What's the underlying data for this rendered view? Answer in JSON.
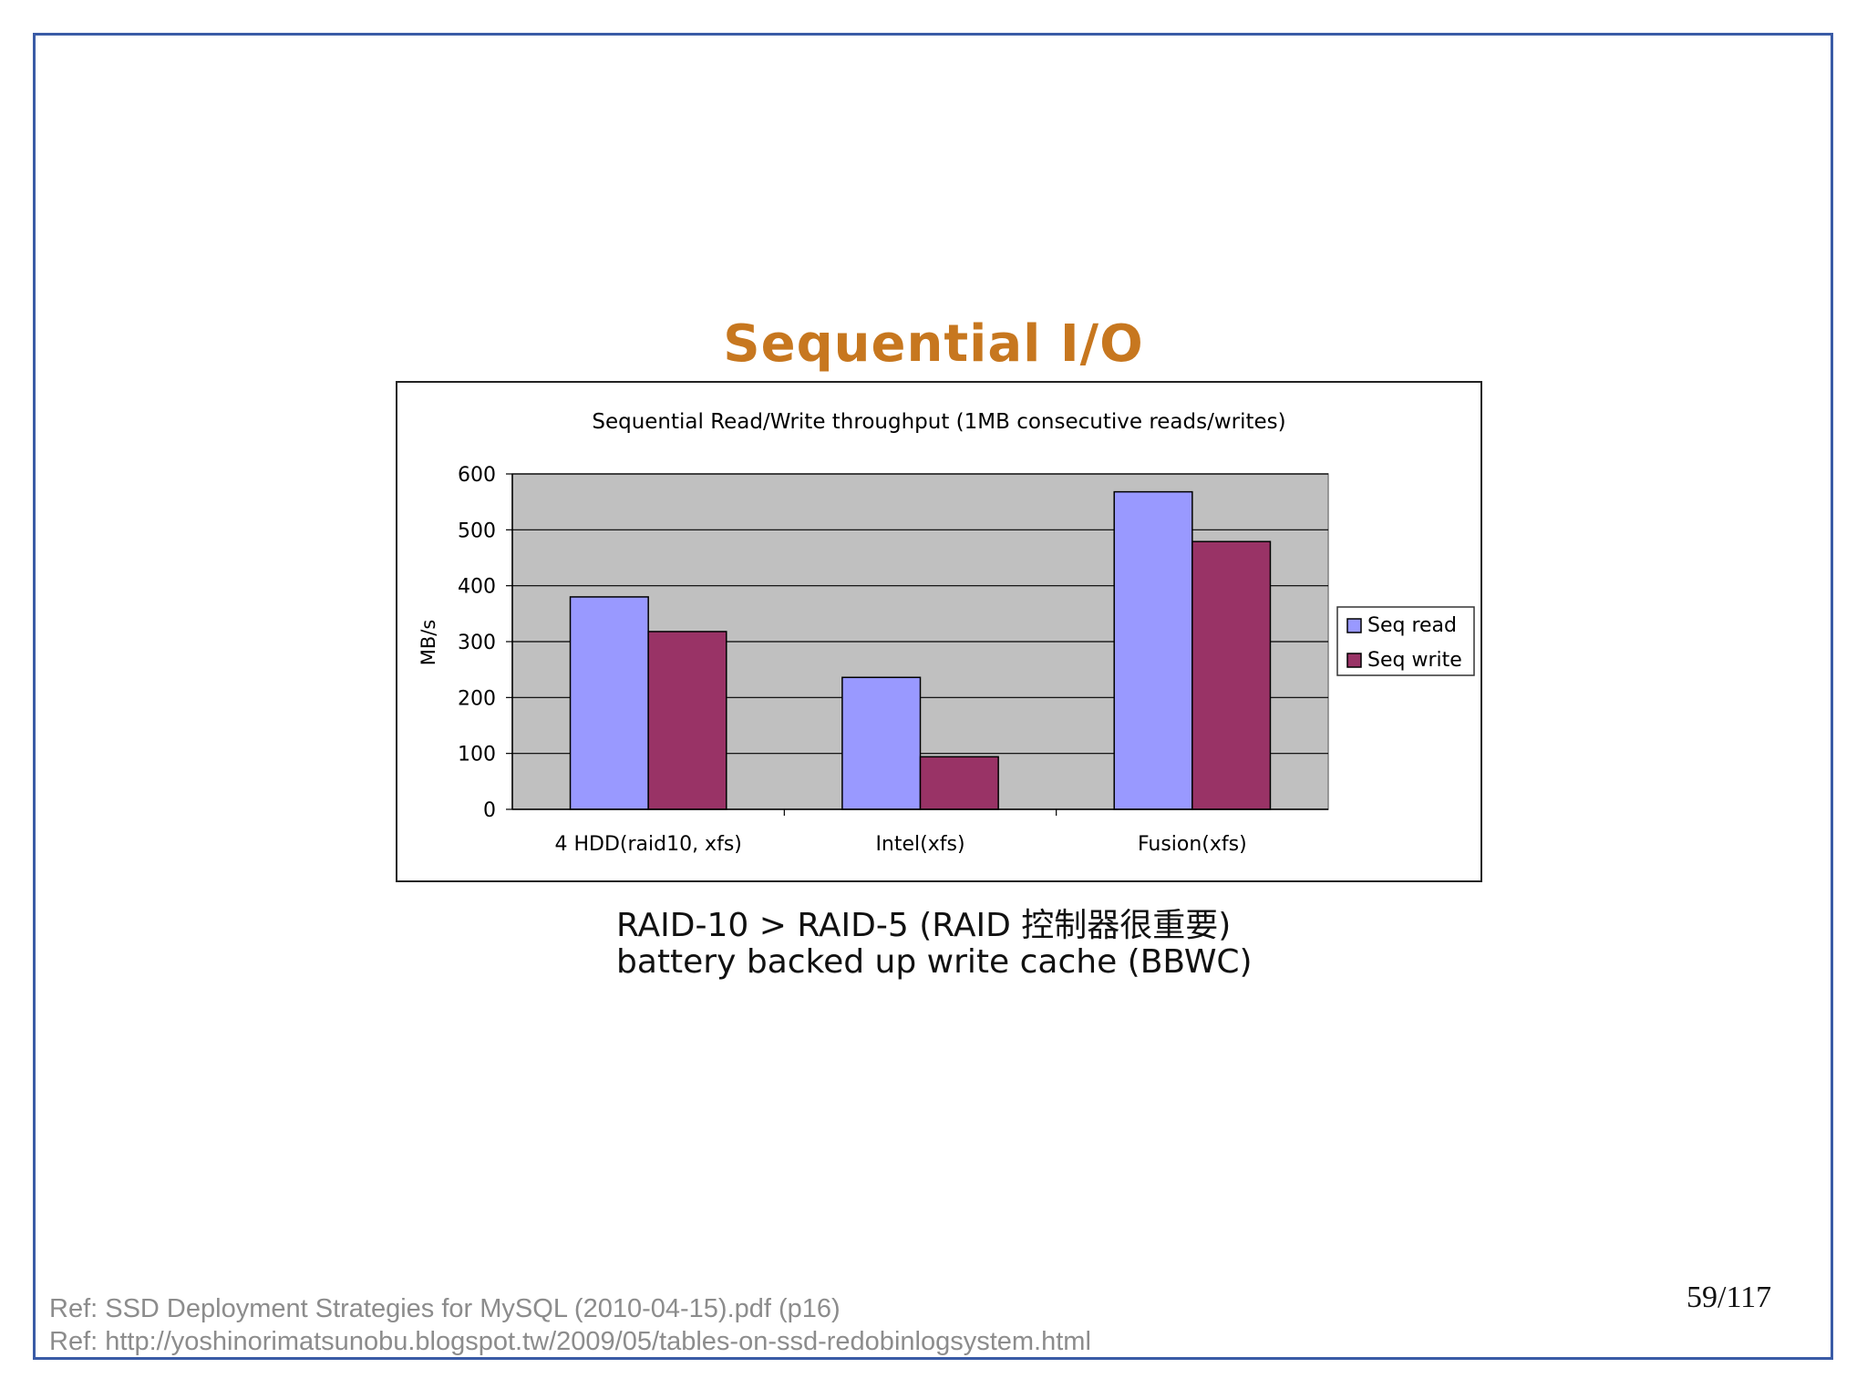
{
  "slide": {
    "title": "Sequential I/O",
    "caption_line1": "RAID-10 > RAID-5 (RAID 控制器很重要)",
    "caption_line2": "battery backed up write cache (BBWC)",
    "ref1": "Ref: SSD Deployment Strategies for MySQL (2010-04-15).pdf (p16)",
    "ref2": "Ref: http://yoshinorimatsunobu.blogspot.tw/2009/05/tables-on-ssd-redobinlogsystem.html",
    "page_number": "59/117"
  },
  "chart_data": {
    "type": "bar",
    "title": "Sequential Read/Write throughput (1MB consecutive reads/writes)",
    "ylabel": "MB/s",
    "xlabel": "",
    "categories": [
      "4 HDD(raid10, xfs)",
      "Intel(xfs)",
      "Fusion(xfs)"
    ],
    "series": [
      {
        "name": "Seq read",
        "values": [
          380,
          236,
          568
        ],
        "color": "#9999ff"
      },
      {
        "name": "Seq write",
        "values": [
          318,
          94,
          479
        ],
        "color": "#993366"
      }
    ],
    "ylim": [
      0,
      600
    ],
    "yticks": [
      0,
      100,
      200,
      300,
      400,
      500,
      600
    ],
    "grid": true,
    "plot_background": "#c0c0c0",
    "legend_position": "right"
  }
}
